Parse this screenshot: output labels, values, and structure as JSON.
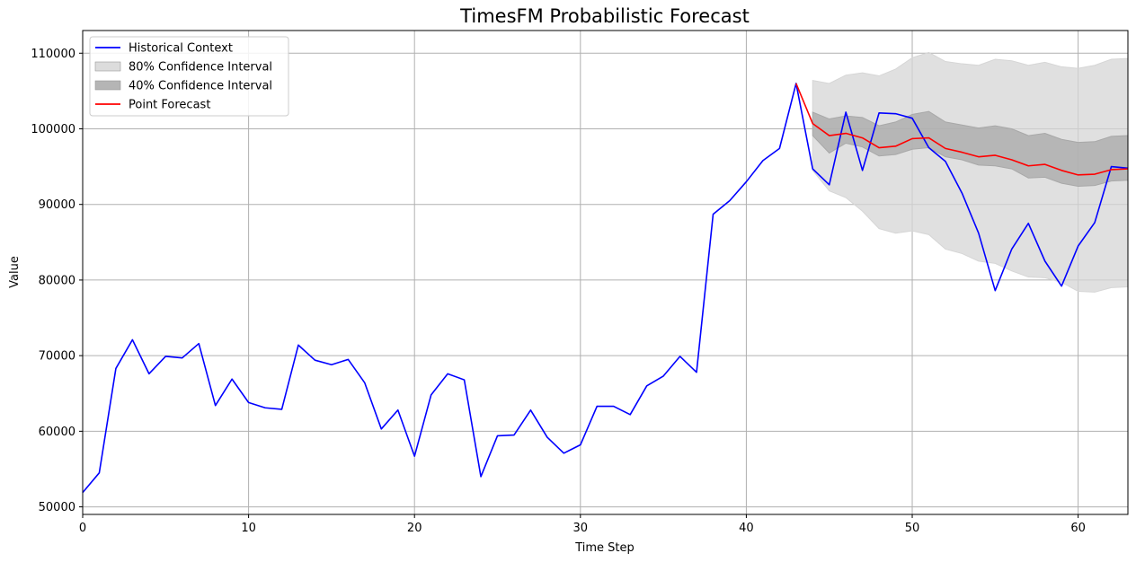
{
  "chart_data": {
    "type": "line",
    "title": "TimesFM Probabilistic Forecast",
    "xlabel": "Time Step",
    "ylabel": "Value",
    "xlim": [
      0,
      63
    ],
    "ylim": [
      49000,
      113000
    ],
    "xticks": [
      0,
      10,
      20,
      30,
      40,
      50,
      60
    ],
    "yticks": [
      50000,
      60000,
      70000,
      80000,
      90000,
      100000,
      110000
    ],
    "grid": true,
    "legend_position": "upper-left",
    "series": [
      {
        "name": "Historical Context",
        "kind": "line",
        "color": "#0000ff",
        "x": [
          0,
          1,
          2,
          3,
          4,
          5,
          6,
          7,
          8,
          9,
          10,
          11,
          12,
          13,
          14,
          15,
          16,
          17,
          18,
          19,
          20,
          21,
          22,
          23,
          24,
          25,
          26,
          27,
          28,
          29,
          30,
          31,
          32,
          33,
          34,
          35,
          36,
          37,
          38,
          39,
          40,
          41,
          42,
          43,
          44,
          45,
          46,
          47,
          48,
          49,
          50,
          51,
          52,
          53,
          54,
          55,
          56,
          57,
          58,
          59,
          60,
          61,
          62,
          63
        ],
        "y": [
          51900,
          54500,
          68300,
          72100,
          67600,
          69900,
          69700,
          71600,
          63400,
          66900,
          63800,
          63100,
          62900,
          71400,
          69400,
          68800,
          69500,
          66400,
          60300,
          62800,
          56700,
          64800,
          67600,
          66800,
          54000,
          59400,
          59500,
          62800,
          59200,
          57100,
          58200,
          63300,
          63300,
          62200,
          66000,
          67300,
          69900,
          67800,
          88700,
          90500,
          93000,
          95800,
          97400,
          106000,
          94700,
          92600,
          102200,
          94500,
          102100,
          102000,
          101400,
          97500,
          95700,
          91500,
          86200,
          78600,
          84100,
          87500,
          82500,
          79200,
          84500,
          87600,
          95000,
          94800
        ]
      },
      {
        "name": "80% Confidence Interval",
        "kind": "band",
        "color": "#d6d6d6",
        "x": [
          44,
          45,
          46,
          47,
          48,
          49,
          50,
          51,
          52,
          53,
          54,
          55,
          56,
          57,
          58,
          59,
          60,
          61,
          62,
          63
        ],
        "lower": [
          94500,
          91800,
          90900,
          89100,
          86800,
          86200,
          86500,
          86000,
          84100,
          83500,
          82500,
          82200,
          81200,
          80400,
          80300,
          79700,
          78500,
          78400,
          79000,
          79100
        ],
        "upper": [
          106400,
          106000,
          107100,
          107400,
          107000,
          107900,
          109400,
          110100,
          108900,
          108600,
          108400,
          109200,
          109000,
          108400,
          108800,
          108200,
          108000,
          108400,
          109200,
          109300
        ]
      },
      {
        "name": "40% Confidence Interval",
        "kind": "band",
        "color": "#a8a8a8",
        "x": [
          44,
          45,
          46,
          47,
          48,
          49,
          50,
          51,
          52,
          53,
          54,
          55,
          56,
          57,
          58,
          59,
          60,
          61,
          62,
          63
        ],
        "lower": [
          99100,
          96800,
          98100,
          97600,
          96400,
          96600,
          97300,
          97500,
          96300,
          95900,
          95200,
          95100,
          94700,
          93500,
          93600,
          92800,
          92400,
          92500,
          93100,
          93200
        ],
        "upper": [
          102200,
          101300,
          101700,
          101500,
          100400,
          100900,
          101900,
          102300,
          100900,
          100500,
          100100,
          100400,
          100000,
          99100,
          99400,
          98600,
          98200,
          98300,
          99000,
          99100
        ]
      },
      {
        "name": "Point Forecast",
        "kind": "line",
        "color": "#ff0000",
        "x": [
          43,
          44,
          45,
          46,
          47,
          48,
          49,
          50,
          51,
          52,
          53,
          54,
          55,
          56,
          57,
          58,
          59,
          60,
          61,
          62,
          63
        ],
        "y": [
          106000,
          100700,
          99100,
          99400,
          98800,
          97500,
          97700,
          98700,
          98800,
          97400,
          96900,
          96300,
          96500,
          95900,
          95100,
          95300,
          94500,
          93900,
          94000,
          94600,
          94700
        ]
      }
    ],
    "legend": [
      "Historical Context",
      "80% Confidence Interval",
      "40% Confidence Interval",
      "Point Forecast"
    ]
  }
}
